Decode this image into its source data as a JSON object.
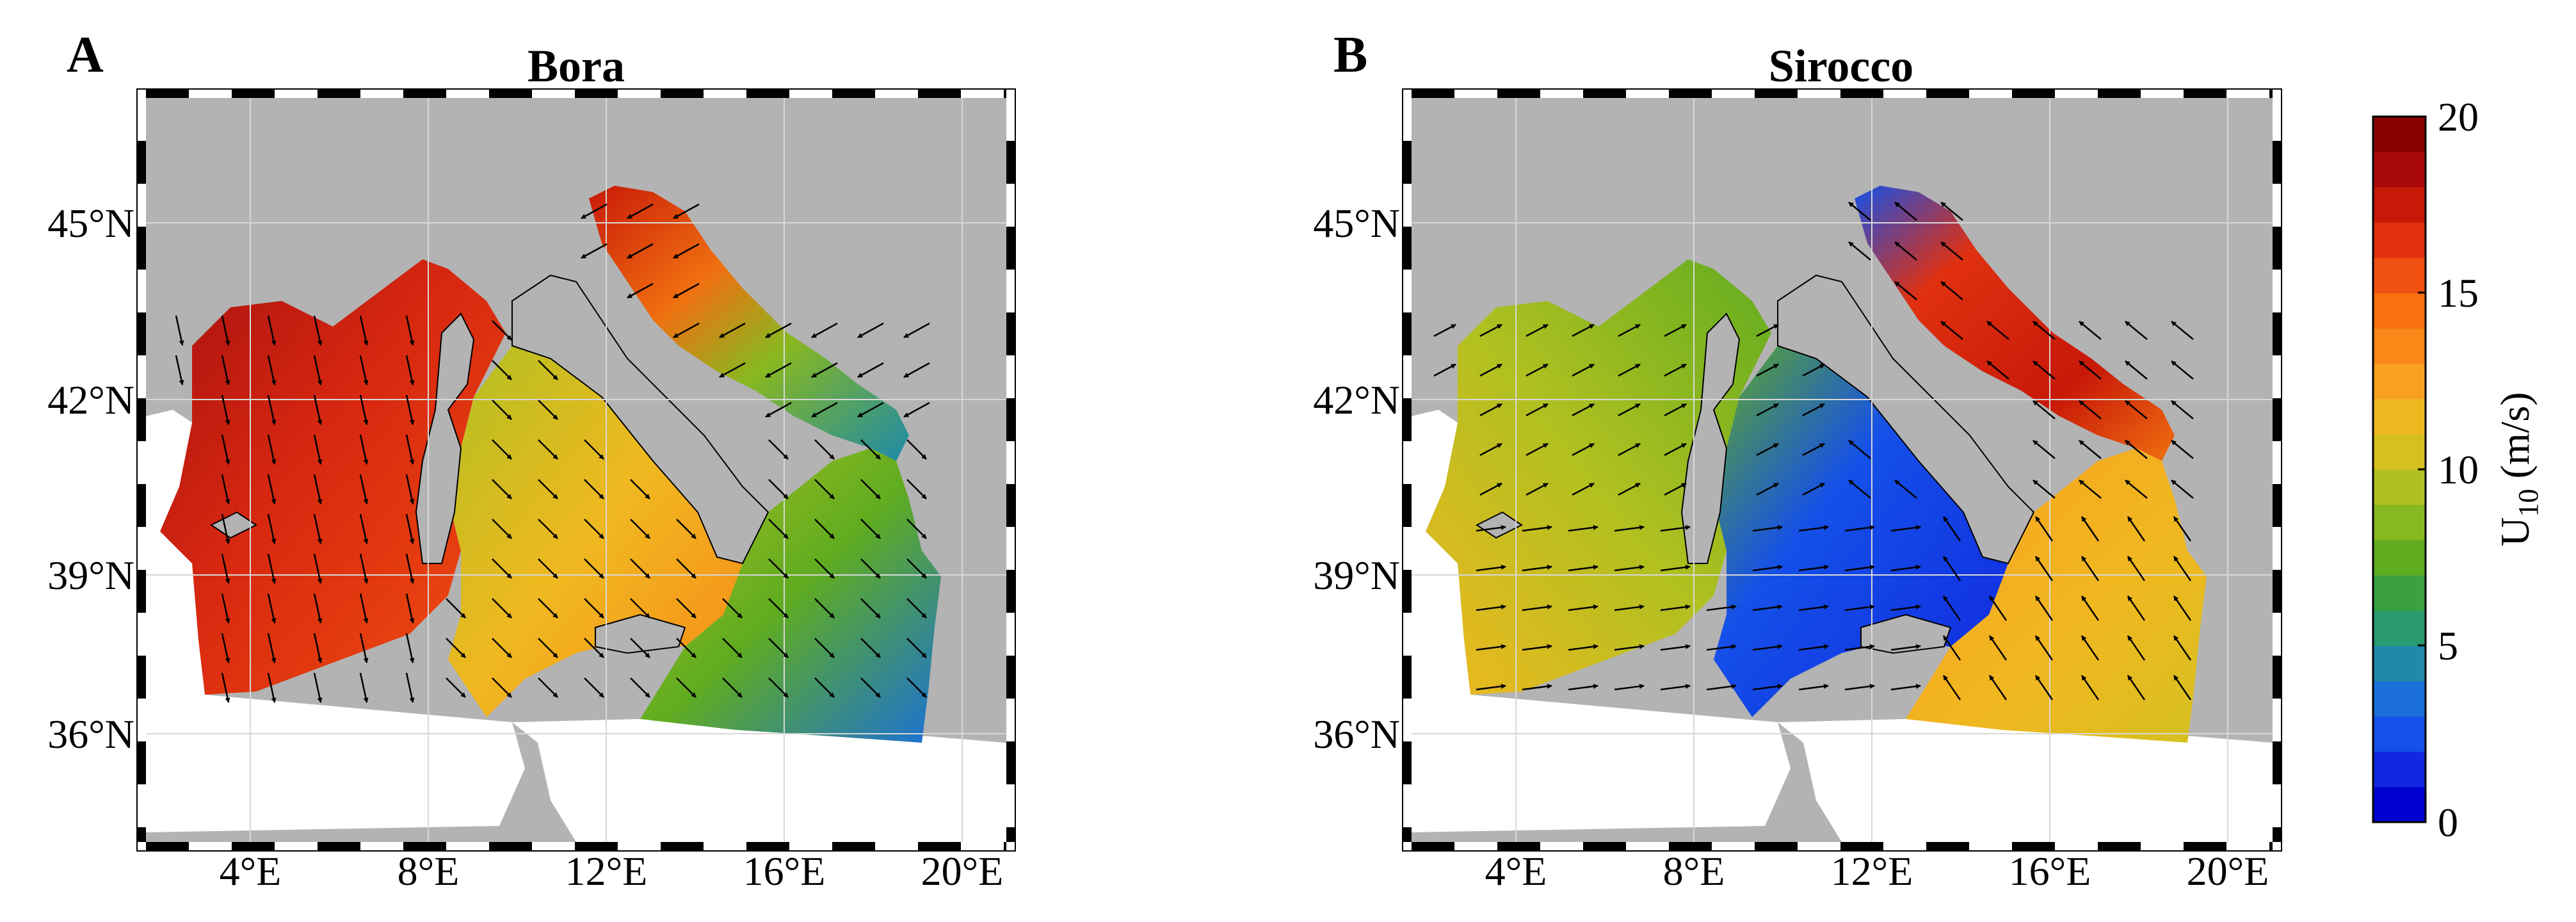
{
  "panels": [
    {
      "letter": "A",
      "title": "Bora"
    },
    {
      "letter": "B",
      "title": "Sirocco"
    }
  ],
  "axes": {
    "lat_labels": [
      "45°N",
      "42°N",
      "39°N",
      "36°N"
    ],
    "lon_labels": [
      "4°E",
      "8°E",
      "12°E",
      "16°E",
      "20°E"
    ]
  },
  "colorbar": {
    "label_main": "U",
    "label_sub": "10",
    "label_unit": " (m/s)",
    "ticks": [
      "20",
      "15",
      "10",
      "5",
      "0"
    ],
    "min": 0,
    "max": 20,
    "colors": [
      "#0000d0",
      "#1028e0",
      "#1550e8",
      "#1a70d8",
      "#1e8aa8",
      "#2a9a70",
      "#3aa040",
      "#60ac20",
      "#88b820",
      "#b0c020",
      "#d4c020",
      "#f0b820",
      "#f8a020",
      "#f88818",
      "#f87010",
      "#f05010",
      "#e03010",
      "#c81808",
      "#a80808",
      "#880000"
    ]
  },
  "map_colors": {
    "land": "#b3b3b3",
    "no_data": "#ffffff",
    "coast": "#000000"
  }
}
